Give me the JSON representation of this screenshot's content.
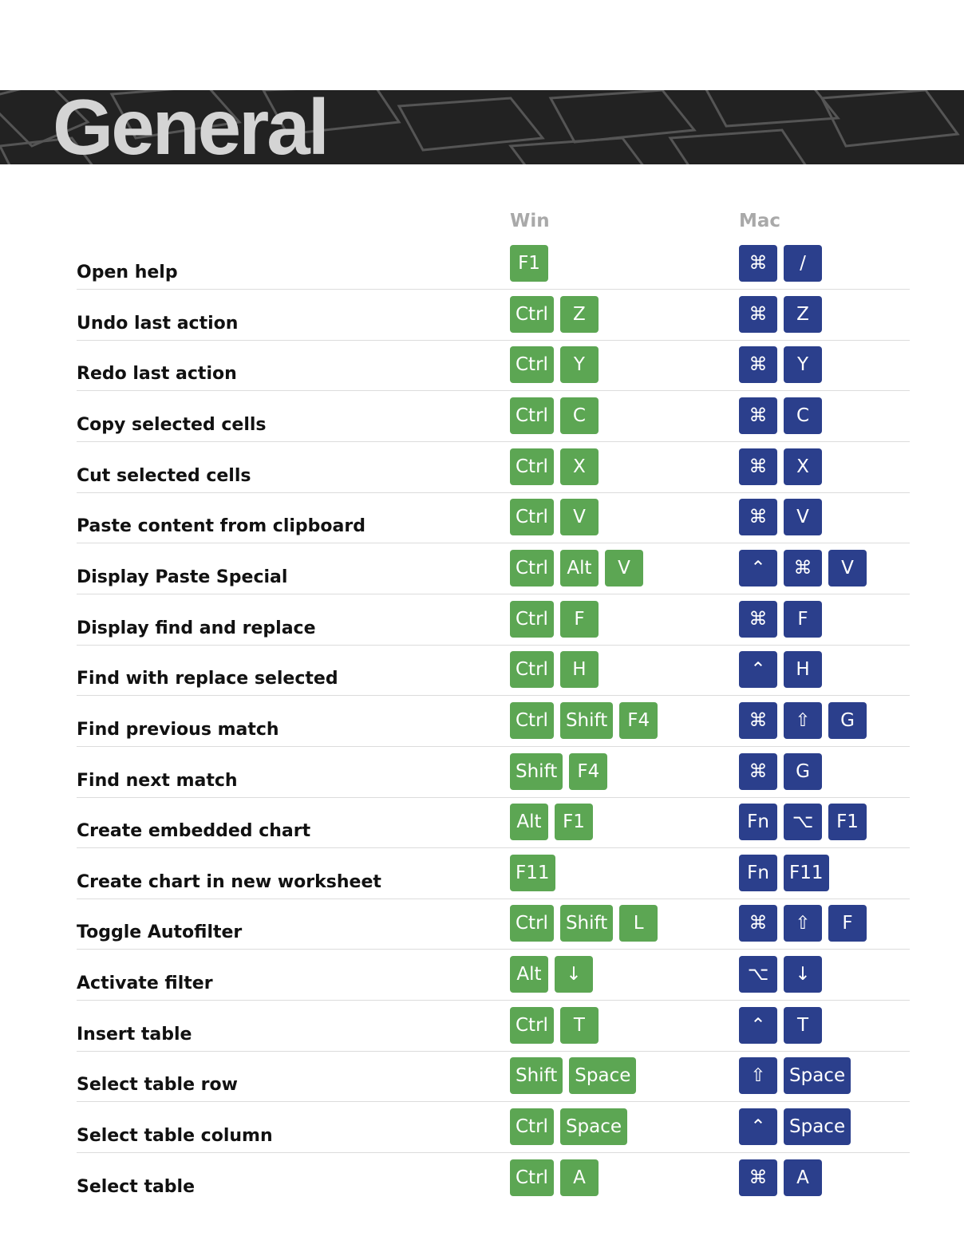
{
  "header": {
    "title": "General"
  },
  "columns": {
    "win": "Win",
    "mac": "Mac"
  },
  "rows": [
    {
      "action": "Open help",
      "win": [
        "F1"
      ],
      "mac": [
        "⌘",
        "/"
      ]
    },
    {
      "action": "Undo last action",
      "win": [
        "Ctrl",
        "Z"
      ],
      "mac": [
        "⌘",
        "Z"
      ]
    },
    {
      "action": "Redo last action",
      "win": [
        "Ctrl",
        "Y"
      ],
      "mac": [
        "⌘",
        "Y"
      ]
    },
    {
      "action": "Copy selected cells",
      "win": [
        "Ctrl",
        "C"
      ],
      "mac": [
        "⌘",
        "C"
      ]
    },
    {
      "action": "Cut selected cells",
      "win": [
        "Ctrl",
        "X"
      ],
      "mac": [
        "⌘",
        "X"
      ]
    },
    {
      "action": "Paste content from clipboard",
      "win": [
        "Ctrl",
        "V"
      ],
      "mac": [
        "⌘",
        "V"
      ]
    },
    {
      "action": "Display Paste Special",
      "win": [
        "Ctrl",
        "Alt",
        "V"
      ],
      "mac": [
        "⌃",
        "⌘",
        "V"
      ]
    },
    {
      "action": "Display find and replace",
      "win": [
        "Ctrl",
        "F"
      ],
      "mac": [
        "⌘",
        "F"
      ]
    },
    {
      "action": "Find with replace selected",
      "win": [
        "Ctrl",
        "H"
      ],
      "mac": [
        "⌃",
        "H"
      ]
    },
    {
      "action": "Find previous match",
      "win": [
        "Ctrl",
        "Shift",
        "F4"
      ],
      "mac": [
        "⌘",
        "⇧",
        "G"
      ]
    },
    {
      "action": "Find next match",
      "win": [
        "Shift",
        "F4"
      ],
      "mac": [
        "⌘",
        "G"
      ]
    },
    {
      "action": "Create embedded chart",
      "win": [
        "Alt",
        "F1"
      ],
      "mac": [
        "Fn",
        "⌥",
        "F1"
      ]
    },
    {
      "action": "Create chart in new worksheet",
      "win": [
        "F11"
      ],
      "mac": [
        "Fn",
        "F11"
      ]
    },
    {
      "action": "Toggle Autofilter",
      "win": [
        "Ctrl",
        "Shift",
        "L"
      ],
      "mac": [
        "⌘",
        "⇧",
        "F"
      ]
    },
    {
      "action": "Activate filter",
      "win": [
        "Alt",
        "↓"
      ],
      "mac": [
        "⌥",
        "↓"
      ]
    },
    {
      "action": "Insert table",
      "win": [
        "Ctrl",
        "T"
      ],
      "mac": [
        "⌃",
        "T"
      ]
    },
    {
      "action": "Select table row",
      "win": [
        "Shift",
        "Space"
      ],
      "mac": [
        "⇧",
        "Space"
      ]
    },
    {
      "action": "Select table column",
      "win": [
        "Ctrl",
        "Space"
      ],
      "mac": [
        "⌃",
        "Space"
      ]
    },
    {
      "action": "Select table",
      "win": [
        "Ctrl",
        "A"
      ],
      "mac": [
        "⌘",
        "A"
      ]
    }
  ]
}
